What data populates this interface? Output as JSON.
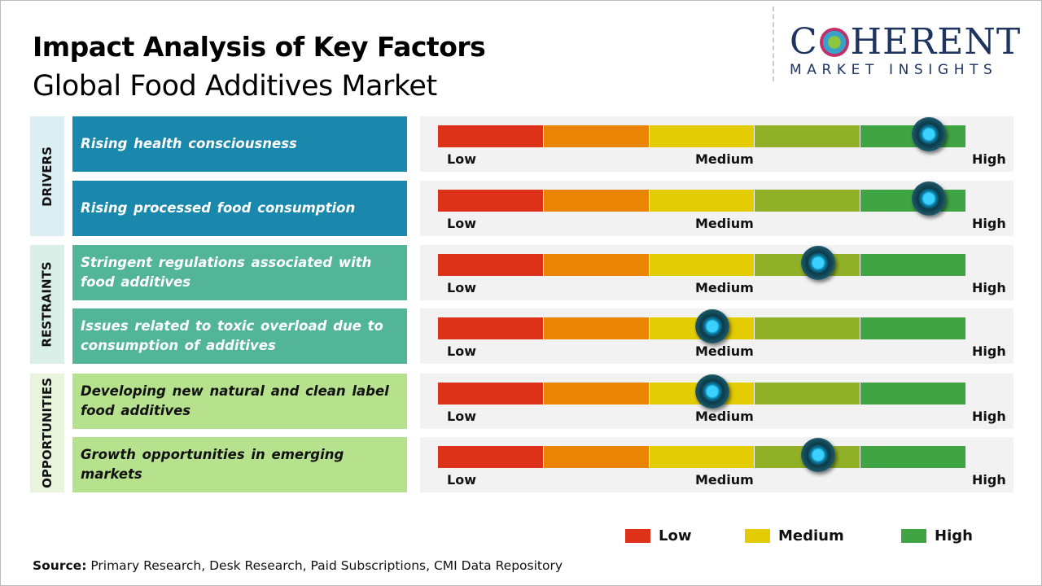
{
  "header": {
    "title": "Impact Analysis of Key Factors",
    "subtitle": "Global Food Additives Market"
  },
  "logo": {
    "main_left": "C",
    "main_right": "HERENT",
    "sub": "MARKET INSIGHTS"
  },
  "chart_data": {
    "type": "gauge",
    "scale_labels": {
      "low": "Low",
      "medium": "Medium",
      "high": "High"
    },
    "segment_colors": [
      "#de3119",
      "#ea8404",
      "#e4cc05",
      "#90b027",
      "#40a445"
    ],
    "categories": [
      {
        "name": "DRIVERS",
        "cat_bg": "#dbeef4",
        "item_bg": "#1a87ad",
        "item_text": "#ffffff",
        "rows": [
          0,
          1
        ]
      },
      {
        "name": "RESTRAINTS",
        "cat_bg": "#d9efe7",
        "item_bg": "#53b598",
        "item_text": "#ffffff",
        "rows": [
          2,
          3
        ]
      },
      {
        "name": "OPPORTUNITIES",
        "cat_bg": "#e8f5dc",
        "item_bg": "#b6e28e",
        "item_text": "#111111",
        "rows": [
          4,
          5
        ]
      }
    ],
    "factors": [
      {
        "label": "Rising health consciousness",
        "impact": 0.93
      },
      {
        "label": "Rising processed  food consumption",
        "impact": 0.93
      },
      {
        "label": "Stringent  regulations  associated  with  food additives",
        "impact": 0.72
      },
      {
        "label": "Issues  related  to  toxic  overload  due  to consumption  of  additives",
        "impact": 0.52
      },
      {
        "label": "Developing  new  natural  and  clean  label food  additives",
        "impact": 0.52
      },
      {
        "label": "Growth  opportunities  in  emerging  markets",
        "impact": 0.72
      }
    ],
    "legend": [
      {
        "label": "Low",
        "color": "#de3119"
      },
      {
        "label": "Medium",
        "color": "#e4cc05"
      },
      {
        "label": "High",
        "color": "#40a445"
      }
    ]
  },
  "source": {
    "label": "Source:",
    "text": " Primary Research, Desk Research, Paid Subscriptions, CMI Data Repository"
  }
}
